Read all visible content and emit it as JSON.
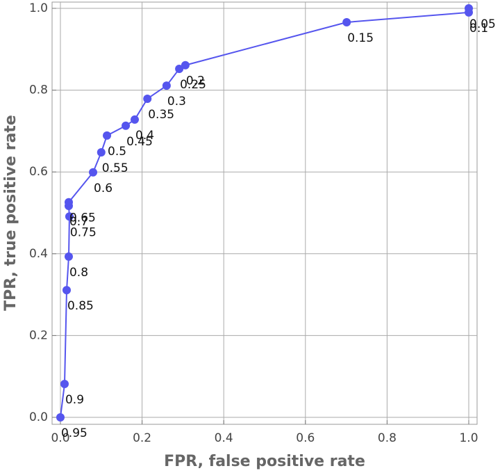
{
  "chart_data": {
    "type": "line",
    "xlabel": "FPR, false positive rate",
    "ylabel": "TPR, true positive rate",
    "x": [
      0,
      0.0102,
      0.0153,
      0.0204,
      0.022,
      0.0204,
      0.0204,
      0.08,
      0.1,
      0.114,
      0.16,
      0.182,
      0.213,
      0.26,
      0.291,
      0.306,
      0.701,
      1.0,
      1.0
    ],
    "series": [
      {
        "color": "#5555ee",
        "values": [
          0,
          0.0816,
          0.311,
          0.393,
          0.491,
          0.517,
          0.526,
          0.599,
          0.648,
          0.689,
          0.713,
          0.728,
          0.779,
          0.811,
          0.852,
          0.861,
          0.966,
          0.99,
          1.0
        ],
        "point_labels": [
          "0.95",
          "0.9",
          "0.85",
          "0.8",
          "0.75",
          "0.7",
          "0.65",
          "0.6",
          "0.55",
          "0.5",
          "0.45",
          "0.4",
          "0.35",
          "0.3",
          "0.25",
          "0.2",
          "0.15",
          "0.1",
          "0.05"
        ]
      }
    ],
    "xlim": [
      -0.0204,
      1.0204
    ],
    "ylim": [
      -0.017,
      1.0153
    ],
    "xticks": [
      {
        "value": 0,
        "label": "0.0"
      },
      0.2,
      0.4,
      0.6,
      0.8,
      {
        "value": 1,
        "label": "1.0"
      }
    ],
    "yticks": [
      {
        "value": 0,
        "label": "0.0"
      },
      0.2,
      0.4,
      0.6,
      0.8,
      {
        "value": 1,
        "label": "1.0"
      }
    ],
    "grid": true
  }
}
